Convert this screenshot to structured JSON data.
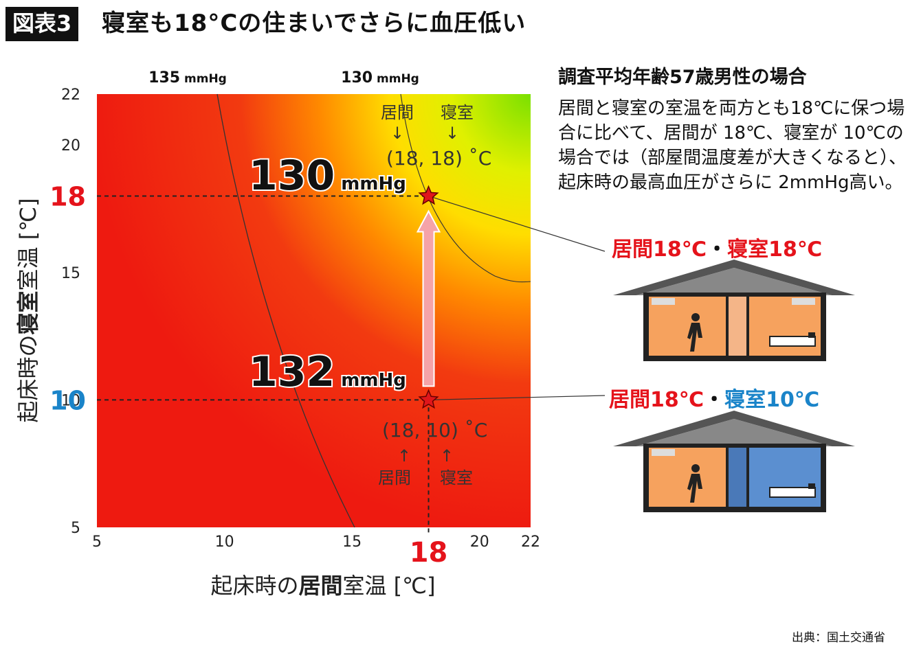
{
  "header": {
    "badge": "図表3",
    "title": "寝室も18°Cの住まいでさらに血圧低い"
  },
  "chart_data": {
    "type": "heatmap",
    "x_label_parts": [
      "起床時の",
      "居間",
      "室温 [℃]"
    ],
    "y_label_parts": [
      "起床時の",
      "寝室",
      "室温 [℃]"
    ],
    "x_ticks": [
      5,
      10,
      15,
      20,
      22
    ],
    "y_ticks": [
      5,
      10,
      15,
      20,
      22
    ],
    "xlim": [
      5,
      22
    ],
    "ylim": [
      5,
      22
    ],
    "highlight_x": "18",
    "highlight_y_top": "18",
    "highlight_y_bottom": "10",
    "contours": [
      {
        "label": "135",
        "unit": "mmHg"
      },
      {
        "label": "130",
        "unit": "mmHg"
      }
    ],
    "points": [
      {
        "x": 18,
        "y": 18,
        "value": "130",
        "unit": "mmHg",
        "coord_text": "(18, 18) ˚C",
        "label_x": "居間",
        "label_y": "寝室",
        "arrow": "↓"
      },
      {
        "x": 18,
        "y": 10,
        "value": "132",
        "unit": "mmHg",
        "coord_text": "(18, 10) ˚C",
        "label_x": "居間",
        "label_y": "寝室",
        "arrow": "↑"
      }
    ],
    "colors": {
      "low_bp": "#7ae000",
      "mid": "#ffdd00",
      "high_bp": "#ee1a10",
      "point": "#e0161b",
      "arrow": "#f5a3a8"
    }
  },
  "side": {
    "heading": "調査平均年齢57歳男性の場合",
    "body": "居間と寝室の室温を両方とも18℃に保つ場合に比べて、居間が 18℃、寝室が 10℃の場合では（部屋間温度差が大きくなると）、起床時の最高血圧がさらに 2mmHg高い。",
    "case1": {
      "living": "居間18℃",
      "dot": "・",
      "bedroom": "寝室18℃"
    },
    "case2": {
      "living": "居間18℃",
      "dot": "・",
      "bedroom": "寝室10℃"
    },
    "house_icon": "house-cross-section"
  },
  "source": "出典：国土交通省"
}
